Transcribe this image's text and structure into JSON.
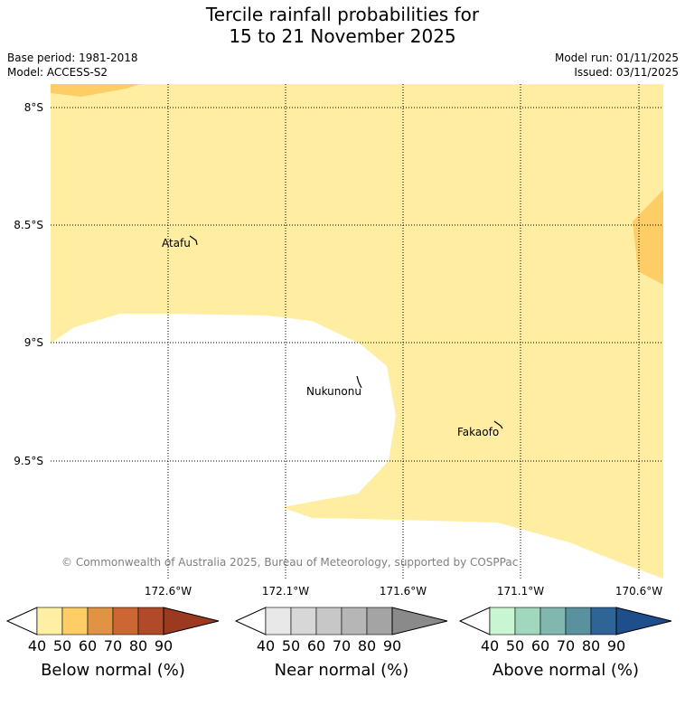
{
  "title": {
    "line1": "Tercile rainfall probabilities for",
    "line2": "15 to 21 November 2025"
  },
  "meta": {
    "base_period": "Base period: 1981-2018",
    "model": "Model: ACCESS-S2",
    "model_run": "Model run: 01/11/2025",
    "issued": "Issued: 03/11/2025"
  },
  "map": {
    "lat_labels": [
      "8°S",
      "8.5°S",
      "9°S",
      "9.5°S"
    ],
    "lon_labels": [
      "172.6°W",
      "172.1°W",
      "171.6°W",
      "171.1°W",
      "170.6°W"
    ],
    "places": [
      "Atafu",
      "Nukunonu",
      "Fakaofo"
    ],
    "copyright": "© Commonwealth of Australia 2025, Bureau of Meteorology, supported by COSPPac"
  },
  "colorbars": [
    {
      "label": "Below normal (%)",
      "ticks": [
        "40",
        "50",
        "60",
        "70",
        "80",
        "90"
      ],
      "colors": [
        "#ffffff",
        "#ffefa3",
        "#fecd66",
        "#e09443",
        "#cc6633",
        "#b04a28",
        "#9c3a1f"
      ]
    },
    {
      "label": "Near normal (%)",
      "ticks": [
        "40",
        "50",
        "60",
        "70",
        "80",
        "90"
      ],
      "colors": [
        "#ffffff",
        "#e8e8e8",
        "#d7d7d7",
        "#c7c7c7",
        "#b6b6b6",
        "#a4a4a4",
        "#8a8a8a"
      ]
    },
    {
      "label": "Above normal (%)",
      "ticks": [
        "40",
        "50",
        "60",
        "70",
        "80",
        "90"
      ],
      "colors": [
        "#ffffff",
        "#c8f6d2",
        "#a1d8bd",
        "#80b8b0",
        "#5a919e",
        "#2f6497",
        "#1e4f8c"
      ]
    }
  ]
}
